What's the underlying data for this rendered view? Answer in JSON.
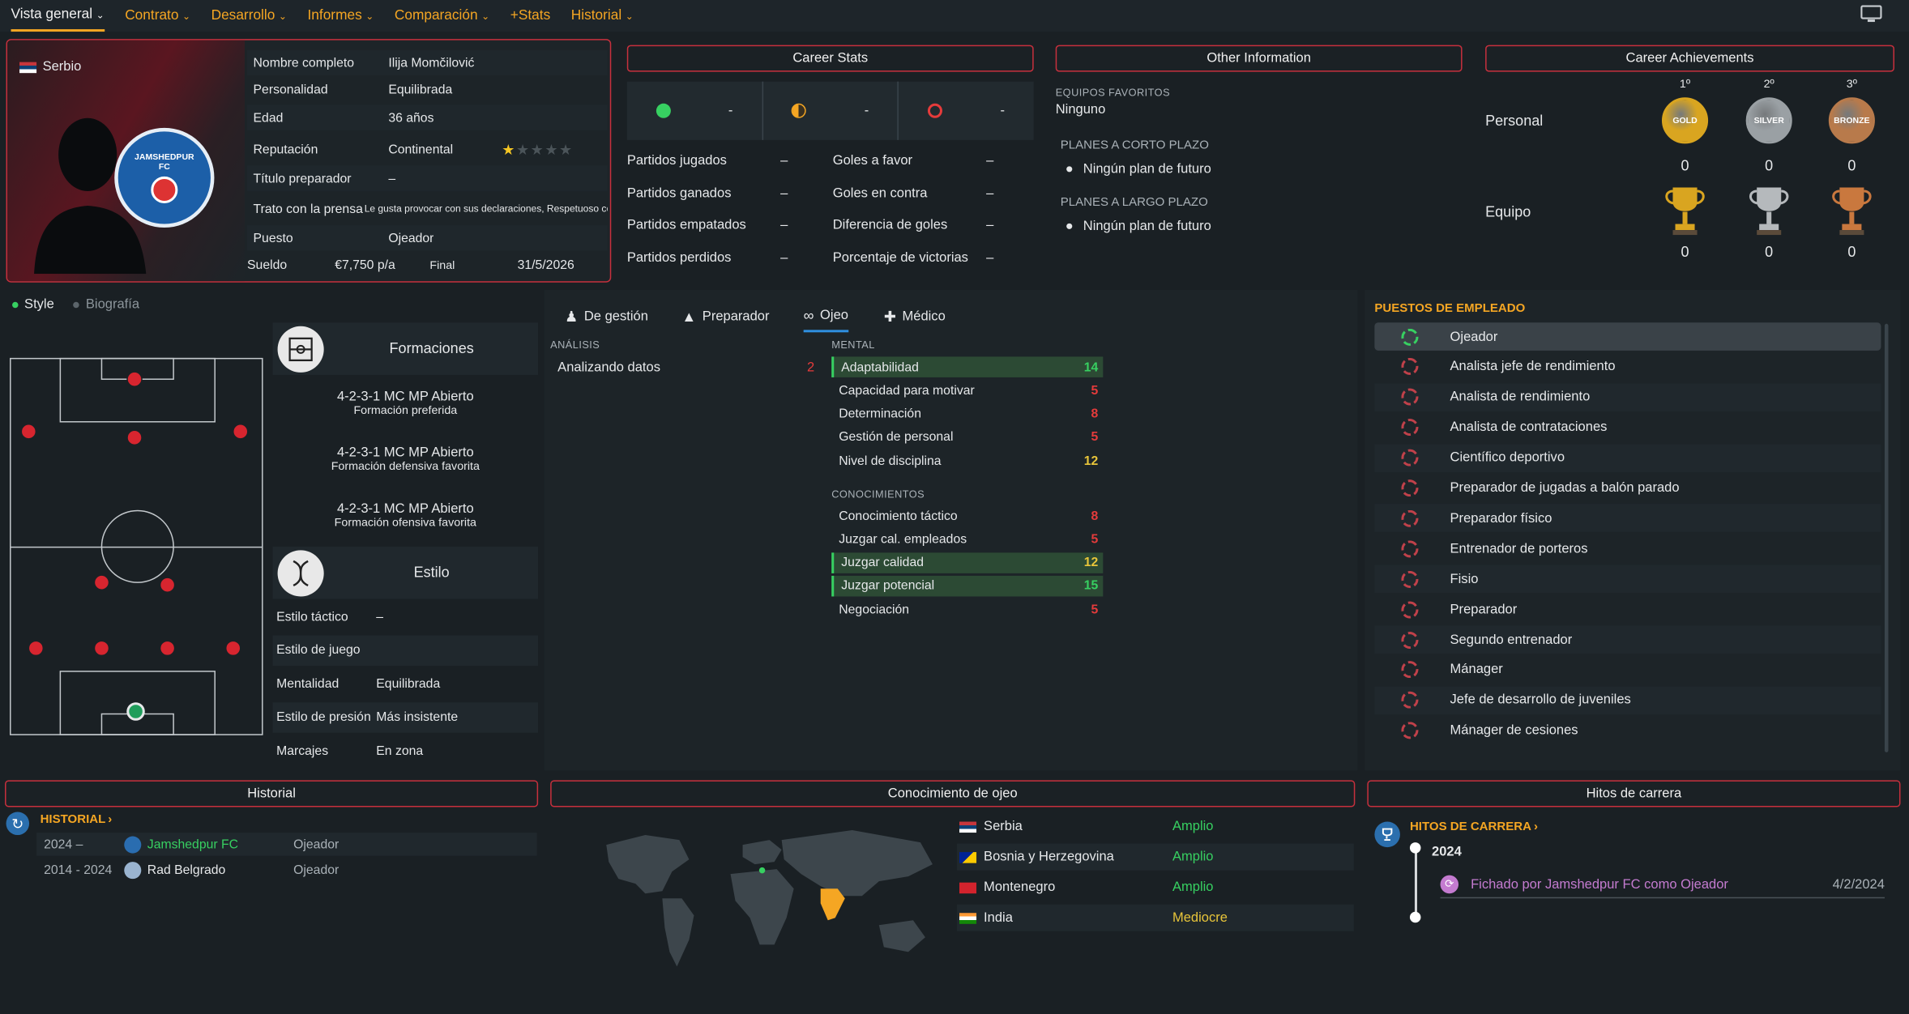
{
  "nav": {
    "items": [
      "Vista general",
      "Contrato",
      "Desarrollo",
      "Informes",
      "Comparación",
      "+Stats",
      "Historial"
    ],
    "active": "Vista general"
  },
  "profile": {
    "nationality": "Serbio",
    "club_badge": "JAMSHEDPUR FC",
    "fields": [
      {
        "label": "Nombre completo",
        "value": "Ilija Momčilović"
      },
      {
        "label": "Personalidad",
        "value": "Equilibrada"
      },
      {
        "label": "Edad",
        "value": "36 años"
      },
      {
        "label": "Reputación",
        "value": "Continental"
      },
      {
        "label": "Título preparador",
        "value": "–"
      },
      {
        "label": "Trato con la prensa",
        "value": "Le gusta provocar con sus declaraciones, Respetuoso con la prensa"
      },
      {
        "label": "Puesto",
        "value": "Ojeador"
      }
    ],
    "reputation_stars": 1,
    "salary": {
      "label": "Sueldo",
      "value": "€7,750 p/a",
      "end_label": "Final",
      "end_value": "31/5/2026"
    }
  },
  "career_stats": {
    "title": "Career Stats",
    "summary": [
      "-",
      "-",
      "-"
    ],
    "rows": [
      {
        "label": "Partidos jugados",
        "value": "–",
        "label2": "Goles a favor",
        "value2": "–"
      },
      {
        "label": "Partidos ganados",
        "value": "–",
        "label2": "Goles en contra",
        "value2": "–"
      },
      {
        "label": "Partidos empatados",
        "value": "–",
        "label2": "Diferencia de goles",
        "value2": "–"
      },
      {
        "label": "Partidos perdidos",
        "value": "–",
        "label2": "Porcentaje de victorias",
        "value2": "–"
      }
    ]
  },
  "other_info": {
    "title": "Other Information",
    "fav_label": "EQUIPOS FAVORITOS",
    "fav_value": "Ninguno",
    "short_label": "PLANES A CORTO PLAZO",
    "short_value": "Ningún plan de futuro",
    "long_label": "PLANES A LARGO PLAZO",
    "long_value": "Ningún plan de futuro"
  },
  "achievements": {
    "title": "Career Achievements",
    "places": [
      "1º",
      "2º",
      "3º"
    ],
    "medals": [
      "GOLD",
      "SILVER",
      "BRONZE"
    ],
    "personal_label": "Personal",
    "personal_counts": [
      "0",
      "0",
      "0"
    ],
    "team_label": "Equipo",
    "team_counts": [
      "0",
      "0",
      "0"
    ]
  },
  "style_tabs": [
    "Style",
    "Biografía"
  ],
  "formations": {
    "title": "Formaciones",
    "items": [
      {
        "name": "4-2-3-1 MC MP Abierto",
        "desc": "Formación preferida"
      },
      {
        "name": "4-2-3-1 MC MP Abierto",
        "desc": "Formación defensiva favorita"
      },
      {
        "name": "4-2-3-1 MC MP Abierto",
        "desc": "Formación ofensiva favorita"
      }
    ]
  },
  "estilo": {
    "title": "Estilo",
    "rows": [
      {
        "label": "Estilo táctico",
        "value": "–"
      },
      {
        "label": "Estilo de juego",
        "value": ""
      },
      {
        "label": "Mentalidad",
        "value": "Equilibrada"
      },
      {
        "label": "Estilo de presión",
        "value": "Más insistente"
      },
      {
        "label": "Marcajes",
        "value": "En zona"
      }
    ]
  },
  "attr_tabs": [
    "De gestión",
    "Preparador",
    "Ojeo",
    "Médico"
  ],
  "attr_active": "Ojeo",
  "analysis": {
    "title": "ANÁLISIS",
    "rows": [
      {
        "label": "Analizando datos",
        "value": "2"
      }
    ]
  },
  "mental": {
    "title": "MENTAL",
    "rows": [
      {
        "label": "Adaptabilidad",
        "value": "14",
        "hl": true
      },
      {
        "label": "Capacidad para motivar",
        "value": "5"
      },
      {
        "label": "Determinación",
        "value": "8"
      },
      {
        "label": "Gestión de personal",
        "value": "5"
      },
      {
        "label": "Nivel de disciplina",
        "value": "12"
      }
    ]
  },
  "knowledge": {
    "title": "CONOCIMIENTOS",
    "rows": [
      {
        "label": "Conocimiento táctico",
        "value": "8"
      },
      {
        "label": "Juzgar cal. empleados",
        "value": "5"
      },
      {
        "label": "Juzgar calidad",
        "value": "12",
        "hl": true
      },
      {
        "label": "Juzgar potencial",
        "value": "15",
        "hl": true
      },
      {
        "label": "Negociación",
        "value": "5"
      }
    ]
  },
  "roles": {
    "title": "PUESTOS DE EMPLEADO",
    "items": [
      "Ojeador",
      "Analista jefe de rendimiento",
      "Analista de rendimiento",
      "Analista de contrataciones",
      "Científico deportivo",
      "Preparador de jugadas a balón parado",
      "Preparador físico",
      "Entrenador de porteros",
      "Fisio",
      "Preparador",
      "Segundo entrenador",
      "Mánager",
      "Jefe de desarrollo de juveniles",
      "Mánager de cesiones"
    ],
    "selected": 0
  },
  "historial": {
    "title": "Historial",
    "link": "HISTORIAL",
    "rows": [
      {
        "years": "2024 –",
        "club": "Jamshedpur FC",
        "role": "Ojeador",
        "current": true
      },
      {
        "years": "2014 - 2024",
        "club": "Rad Belgrado",
        "role": "Ojeador",
        "current": false
      }
    ]
  },
  "knowledge_map": {
    "title": "Conocimiento de ojeo",
    "rows": [
      {
        "country": "Serbia",
        "level": "Amplio"
      },
      {
        "country": "Bosnia y Herzegovina",
        "level": "Amplio"
      },
      {
        "country": "Montenegro",
        "level": "Amplio"
      },
      {
        "country": "India",
        "level": "Mediocre"
      }
    ]
  },
  "milestones": {
    "title": "Hitos de carrera",
    "link": "HITOS DE CARRERA",
    "year": "2024",
    "items": [
      {
        "text": "Fichado por Jamshedpur FC como Ojeador",
        "date": "4/2/2024"
      }
    ]
  },
  "colors": {
    "accent": "#f5a623",
    "red": "#c7303d",
    "good": "#37d061",
    "bad": "#e53b3b",
    "mid": "#e8c53a"
  }
}
